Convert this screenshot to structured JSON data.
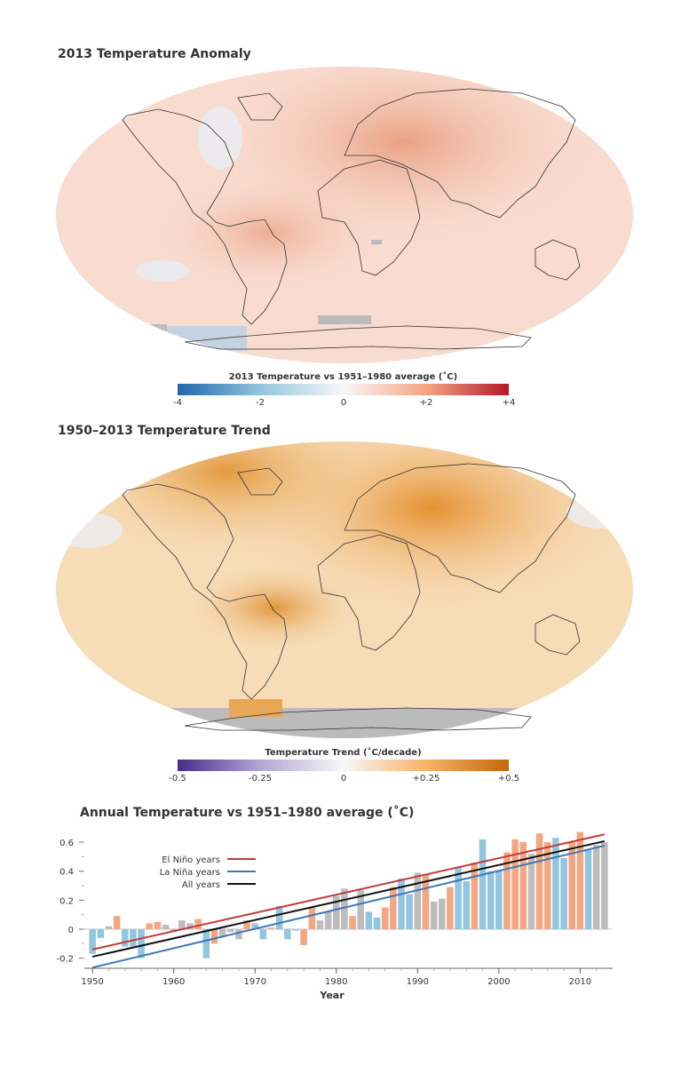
{
  "map1": {
    "title": "2013 Temperature Anomaly",
    "colorbar_title": "2013 Temperature vs 1951–1980 average (˚C)",
    "ticks": [
      "-4",
      "-2",
      "0",
      "+2",
      "+4"
    ],
    "colors": {
      "low": "#2166ac",
      "mid": "#f7f7f7",
      "high": "#b2182b",
      "ocean": "#f8d6c8"
    }
  },
  "map2": {
    "title": "1950–2013 Temperature Trend",
    "colorbar_title": "Temperature Trend (˚C/decade)",
    "ticks": [
      "-0.5",
      "-0.25",
      "0",
      "+0.25",
      "+0.5"
    ],
    "colors": {
      "low": "#4b2a8a",
      "mid": "#f7f7f7",
      "high": "#c5660a",
      "ocean": "#f6d7ae"
    }
  },
  "chart_data": {
    "type": "bar",
    "title": "Annual Temperature vs 1951–1980 average (˚C)",
    "xlabel": "Year",
    "ylabel": "",
    "xlim": [
      1949,
      2014
    ],
    "ylim": [
      -0.27,
      0.68
    ],
    "xticks": [
      1950,
      1960,
      1970,
      1980,
      1990,
      2000,
      2010
    ],
    "yticks": [
      -0.2,
      0,
      0.2,
      0.4,
      0.6
    ],
    "ytick_labels": [
      "-0.2",
      "0",
      "0.2",
      "0.4",
      "0.6"
    ],
    "legend_position": "upper-left",
    "years": [
      1950,
      1951,
      1952,
      1953,
      1954,
      1955,
      1956,
      1957,
      1958,
      1959,
      1960,
      1961,
      1962,
      1963,
      1964,
      1965,
      1966,
      1967,
      1968,
      1969,
      1970,
      1971,
      1972,
      1973,
      1974,
      1975,
      1976,
      1977,
      1978,
      1979,
      1980,
      1981,
      1982,
      1983,
      1984,
      1985,
      1986,
      1987,
      1988,
      1989,
      1990,
      1991,
      1992,
      1993,
      1994,
      1995,
      1996,
      1997,
      1998,
      1999,
      2000,
      2001,
      2002,
      2003,
      2004,
      2005,
      2006,
      2007,
      2008,
      2009,
      2010,
      2011,
      2012,
      2013
    ],
    "values": [
      -0.17,
      -0.06,
      0.02,
      0.09,
      -0.12,
      -0.12,
      -0.2,
      0.04,
      0.05,
      0.03,
      -0.02,
      0.06,
      0.04,
      0.07,
      -0.2,
      -0.1,
      -0.05,
      -0.02,
      -0.07,
      0.06,
      0.04,
      -0.07,
      0.01,
      0.16,
      -0.07,
      -0.01,
      -0.11,
      0.15,
      0.06,
      0.12,
      0.23,
      0.28,
      0.09,
      0.27,
      0.12,
      0.08,
      0.15,
      0.29,
      0.35,
      0.24,
      0.39,
      0.38,
      0.19,
      0.21,
      0.29,
      0.43,
      0.33,
      0.46,
      0.62,
      0.4,
      0.4,
      0.53,
      0.62,
      0.6,
      0.52,
      0.66,
      0.6,
      0.63,
      0.49,
      0.6,
      0.67,
      0.55,
      0.58,
      0.6
    ],
    "year_types": [
      "L",
      "L",
      "N",
      "E",
      "L",
      "L",
      "L",
      "E",
      "E",
      "N",
      "N",
      "N",
      "N",
      "E",
      "L",
      "E",
      "N",
      "N",
      "N",
      "E",
      "L",
      "L",
      "E",
      "L",
      "L",
      "L",
      "E",
      "E",
      "N",
      "N",
      "N",
      "N",
      "E",
      "N",
      "L",
      "L",
      "E",
      "E",
      "L",
      "L",
      "N",
      "E",
      "N",
      "N",
      "E",
      "L",
      "L",
      "E",
      "L",
      "L",
      "L",
      "E",
      "E",
      "E",
      "N",
      "E",
      "E",
      "L",
      "L",
      "E",
      "E",
      "L",
      "N",
      "N"
    ],
    "series": [
      {
        "name": "El Niño years",
        "color": "#c0393b",
        "trend": [
          -0.14,
          0.0126
        ]
      },
      {
        "name": "La Niña years",
        "color": "#3c78b6",
        "trend": [
          -0.265,
          0.01335
        ]
      },
      {
        "name": "All years",
        "color": "#111111",
        "trend": [
          -0.19,
          0.01265
        ]
      }
    ],
    "bar_colors": {
      "E": "#f4a582",
      "L": "#92c5de",
      "N": "#bdbdbd"
    }
  }
}
